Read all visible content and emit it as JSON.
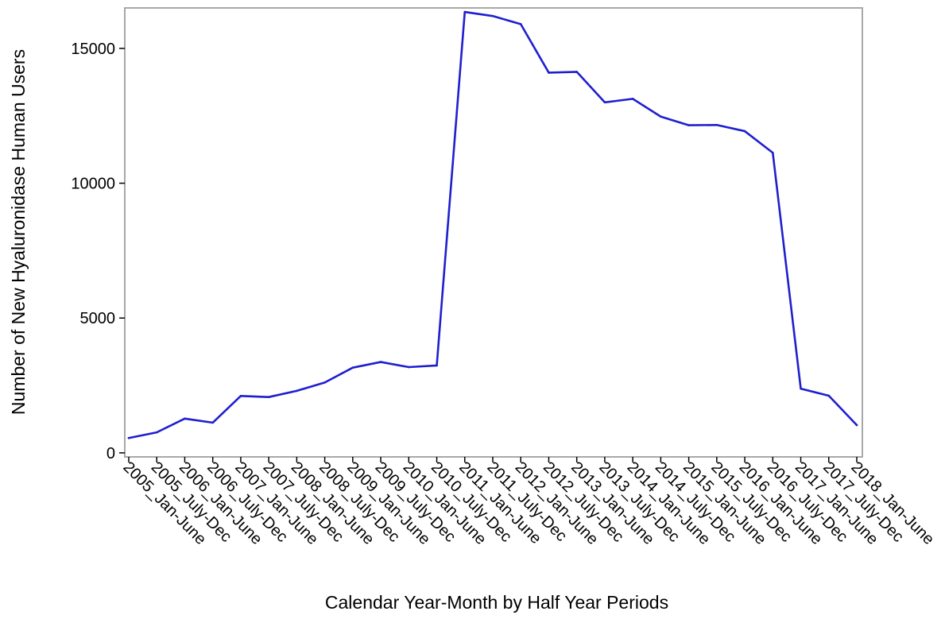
{
  "chart_data": {
    "type": "line",
    "xlabel": "Calendar Year-Month by Half Year Periods",
    "ylabel": "Number of New Hyaluronidase Human Users",
    "ylim": [
      -150,
      16500
    ],
    "yticks": [
      0,
      5000,
      10000,
      15000
    ],
    "grid": false,
    "categories": [
      "2005_Jan-June",
      "2005_July-Dec",
      "2006_Jan-June",
      "2006_July-Dec",
      "2007_Jan-June",
      "2007_July-Dec",
      "2008_Jan-June",
      "2008_July-Dec",
      "2009_Jan-June",
      "2009_July-Dec",
      "2010_Jan-June",
      "2010_July-Dec",
      "2011_Jan-June",
      "2011_July-Dec",
      "2012_Jan-June",
      "2012_July-Dec",
      "2013_Jan-June",
      "2013_July-Dec",
      "2014_Jan-June",
      "2014_July-Dec",
      "2015_Jan-June",
      "2015_July-Dec",
      "2016_Jan-June",
      "2016_July-Dec",
      "2017_Jan-June",
      "2017_July-Dec",
      "2018_Jan-June"
    ],
    "series": [
      {
        "color": "#1f1fcf",
        "values": [
          550,
          760,
          1270,
          1120,
          2110,
          2070,
          2300,
          2610,
          3160,
          3370,
          3180,
          3240,
          16350,
          16200,
          15900,
          14100,
          14130,
          13000,
          13130,
          12470,
          12150,
          12160,
          11930,
          11130,
          2380,
          2120,
          1030
        ]
      }
    ]
  }
}
